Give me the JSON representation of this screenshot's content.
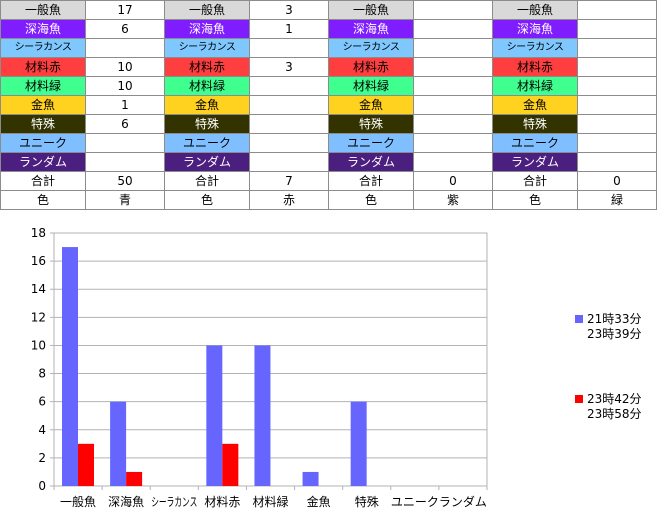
{
  "table": {
    "groups": [
      {
        "counts": [
          "17",
          "6",
          "",
          "10",
          "10",
          "1",
          "6",
          "",
          ""
        ],
        "total": "50",
        "color_label": "色",
        "color_value": "青"
      },
      {
        "counts": [
          "3",
          "1",
          "",
          "3",
          "",
          "",
          "",
          "",
          ""
        ],
        "total": "7",
        "color_label": "色",
        "color_value": "赤"
      },
      {
        "counts": [
          "",
          "",
          "",
          "",
          "",
          "",
          "",
          "",
          ""
        ],
        "total": "0",
        "color_label": "色",
        "color_value": "紫"
      },
      {
        "counts": [
          "",
          "",
          "",
          "",
          "",
          "",
          "",
          "",
          ""
        ],
        "total": "0",
        "color_label": "色",
        "color_value": "緑"
      }
    ],
    "categories": [
      {
        "name": "一般魚",
        "bg": "#d9d9d9",
        "fg": "#000000"
      },
      {
        "name": "深海魚",
        "bg": "#7f1dff",
        "fg": "#ffffff"
      },
      {
        "name": "シーラカンス",
        "bg": "#7fc8ff",
        "fg": "#000000"
      },
      {
        "name": "材料赤",
        "bg": "#ff3f3f",
        "fg": "#000000"
      },
      {
        "name": "材料緑",
        "bg": "#3fff8f",
        "fg": "#000000"
      },
      {
        "name": "金魚",
        "bg": "#ffd21f",
        "fg": "#000000"
      },
      {
        "name": "特殊",
        "bg": "#333300",
        "fg": "#ffffff"
      },
      {
        "name": "ユニーク",
        "bg": "#7fbfff",
        "fg": "#000000"
      },
      {
        "name": "ランダム",
        "bg": "#4b1f7f",
        "fg": "#ffffff"
      }
    ],
    "total_label": "合計"
  },
  "chart_data": {
    "type": "bar",
    "categories": [
      "一般魚",
      "深海魚",
      "シーラカンス",
      "材料赤",
      "材料緑",
      "金魚",
      "特殊",
      "ユニーク",
      "ランダム"
    ],
    "series": [
      {
        "name": "21時33分\n23時39分",
        "color": "#6666ff",
        "values": [
          17,
          6,
          0,
          10,
          10,
          1,
          6,
          0,
          0
        ]
      },
      {
        "name": "23時42分\n23時58分",
        "color": "#ff0000",
        "values": [
          3,
          1,
          0,
          3,
          0,
          0,
          0,
          0,
          0
        ]
      }
    ],
    "ylim": [
      0,
      18
    ],
    "yticks": [
      0,
      2,
      4,
      6,
      8,
      10,
      12,
      14,
      16,
      18
    ],
    "grid": true,
    "legend": "right"
  }
}
